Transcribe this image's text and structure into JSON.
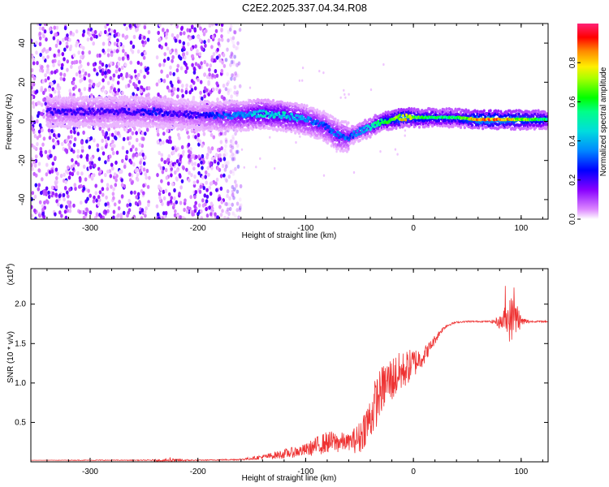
{
  "page_title": "C2E2.2025.337.04.34.R08",
  "colors": {
    "snr_line": "#ee3333",
    "frame": "#000000",
    "background": "#ffffff"
  },
  "chart_data": [
    {
      "name": "spectrogram",
      "type": "heatmap",
      "title": "C2E2.2025.337.04.34.R08",
      "xlabel": "Height of straight line (km)",
      "ylabel": "Frequency (Hz)",
      "xlim": [
        -355,
        125
      ],
      "ylim": [
        -50,
        50
      ],
      "xticks": [
        -300,
        -200,
        -100,
        0,
        100
      ],
      "yticks": [
        -40,
        -20,
        0,
        20,
        40
      ],
      "colorbar": {
        "label": "Normalized spectral amplitude",
        "range": [
          0.0,
          1.0
        ],
        "ticks": [
          0.0,
          0.2,
          0.4,
          0.6,
          0.8
        ]
      },
      "signal_ridge": {
        "x": [
          -340,
          -300,
          -260,
          -240,
          -220,
          -200,
          -180,
          -160,
          -140,
          -120,
          -100,
          -80,
          -70,
          -60,
          -50,
          -40,
          -30,
          -20,
          -10,
          0,
          20,
          40,
          60,
          80,
          100,
          125
        ],
        "y": [
          5,
          5,
          5,
          5,
          4,
          3,
          3,
          3,
          4,
          3,
          1,
          -3,
          -7,
          -8,
          -5,
          -3,
          0,
          1,
          2,
          2,
          2,
          2,
          1,
          1,
          1,
          1
        ],
        "amplitude": [
          0.2,
          0.2,
          0.2,
          0.25,
          0.2,
          0.2,
          0.3,
          0.35,
          0.45,
          0.45,
          0.35,
          0.3,
          0.35,
          0.3,
          0.35,
          0.45,
          0.55,
          0.6,
          0.8,
          0.65,
          0.55,
          0.55,
          0.85,
          0.85,
          0.7,
          0.55
        ]
      },
      "noise_region_x": [
        -355,
        -160
      ],
      "noise_gap_x": [
        -245,
        -238
      ]
    },
    {
      "name": "snr",
      "type": "line",
      "xlabel": "Height of straight line (km)",
      "ylabel": "SNR (10 * v/v)",
      "multiplier_label": "(x10",
      "multiplier_exponent": "4",
      "multiplier_close": ")",
      "xlim": [
        -355,
        125
      ],
      "ylim": [
        0,
        2.45
      ],
      "xticks": [
        -300,
        -200,
        -100,
        0,
        100
      ],
      "yticks": [
        0.5,
        1.0,
        1.5,
        2.0
      ],
      "series": [
        {
          "name": "SNR",
          "x": [
            -355,
            -300,
            -250,
            -225,
            -200,
            -160,
            -140,
            -120,
            -100,
            -90,
            -80,
            -70,
            -60,
            -50,
            -45,
            -40,
            -35,
            -30,
            -25,
            -20,
            -15,
            -10,
            -5,
            0,
            5,
            10,
            15,
            20,
            25,
            30,
            35,
            40,
            50,
            60,
            70,
            75,
            80,
            85,
            90,
            95,
            100,
            110,
            125
          ],
          "y": [
            0.02,
            0.02,
            0.02,
            0.02,
            0.02,
            0.03,
            0.06,
            0.1,
            0.15,
            0.2,
            0.25,
            0.25,
            0.25,
            0.3,
            0.45,
            0.55,
            0.75,
            0.9,
            1.0,
            1.05,
            1.1,
            1.15,
            1.2,
            1.25,
            1.3,
            1.35,
            1.45,
            1.55,
            1.65,
            1.72,
            1.75,
            1.77,
            1.78,
            1.78,
            1.78,
            1.78,
            1.77,
            1.8,
            1.8,
            1.85,
            1.78,
            1.78,
            1.78
          ],
          "noise": [
            0.0,
            0.005,
            0.005,
            0.02,
            0.005,
            0.01,
            0.03,
            0.06,
            0.08,
            0.12,
            0.14,
            0.14,
            0.1,
            0.22,
            0.25,
            0.3,
            0.33,
            0.3,
            0.3,
            0.3,
            0.28,
            0.25,
            0.22,
            0.2,
            0.15,
            0.12,
            0.08,
            0.06,
            0.04,
            0.02,
            0.015,
            0.01,
            0.01,
            0.01,
            0.01,
            0.03,
            0.08,
            0.18,
            0.3,
            0.3,
            0.06,
            0.01,
            0.01
          ]
        }
      ]
    }
  ]
}
